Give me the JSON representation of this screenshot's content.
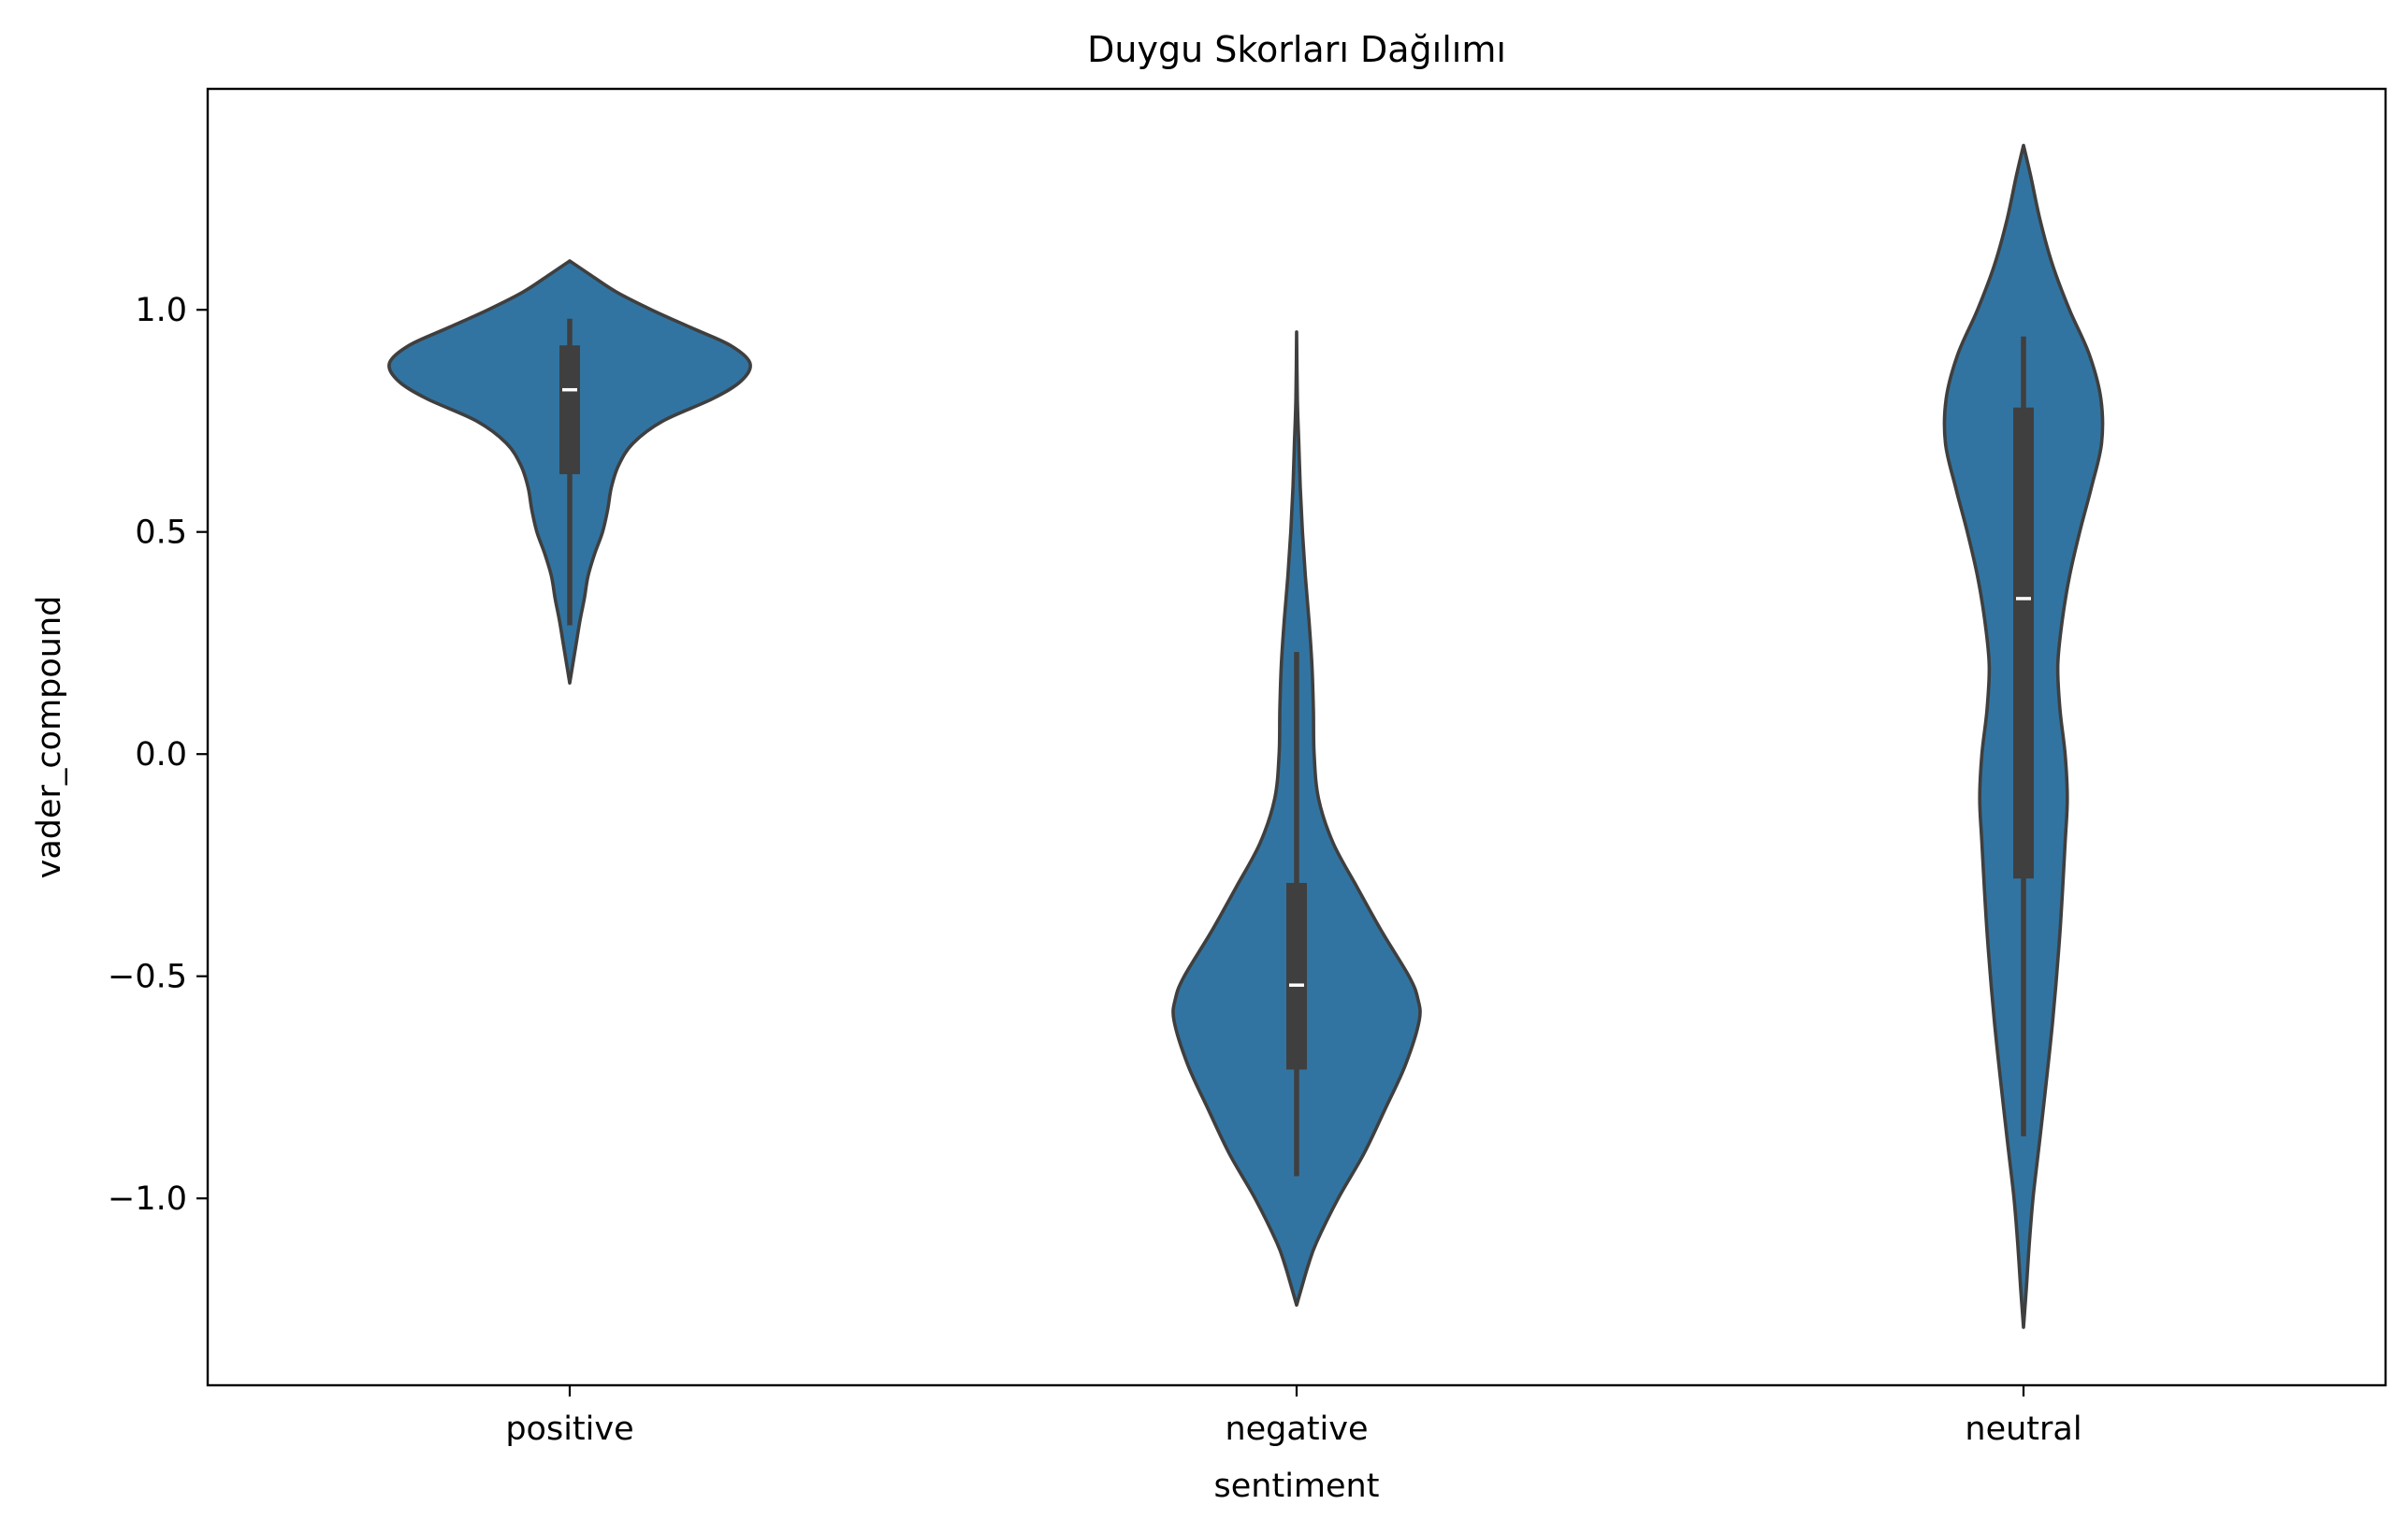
{
  "chart_data": {
    "type": "violin",
    "title": "Duygu Skorları Dağılımı",
    "xlabel": "sentiment",
    "ylabel": "vader_compound",
    "categories": [
      "positive",
      "negative",
      "neutral"
    ],
    "ylim": [
      -1.42,
      1.5
    ],
    "yticks": [
      1.0,
      0.5,
      0.0,
      -0.5,
      -1.0
    ],
    "ytick_labels": [
      "1.0",
      "0.5",
      "0.0",
      "−0.5",
      "−1.0"
    ],
    "grid": false,
    "colors": {
      "violin_fill": "#3274a1",
      "violin_edge": "#3f3f3f",
      "box": "#3f3f3f",
      "median": "#ffffff"
    },
    "violins": [
      {
        "category": "positive",
        "density_profile": [
          [
            0.16,
            0.0
          ],
          [
            0.2,
            0.04
          ],
          [
            0.25,
            0.09
          ],
          [
            0.3,
            0.14
          ],
          [
            0.35,
            0.2
          ],
          [
            0.4,
            0.25
          ],
          [
            0.45,
            0.34
          ],
          [
            0.5,
            0.45
          ],
          [
            0.55,
            0.52
          ],
          [
            0.6,
            0.57
          ],
          [
            0.65,
            0.67
          ],
          [
            0.7,
            0.87
          ],
          [
            0.75,
            1.28
          ],
          [
            0.8,
            1.96
          ],
          [
            0.84,
            2.35
          ],
          [
            0.88,
            2.47
          ],
          [
            0.92,
            2.2
          ],
          [
            0.96,
            1.66
          ],
          [
            1.0,
            1.12
          ],
          [
            1.04,
            0.64
          ],
          [
            1.08,
            0.27
          ],
          [
            1.11,
            0.0
          ]
        ],
        "whisker": [
          0.29,
          0.98
        ],
        "q1": 0.63,
        "median": 0.82,
        "q3": 0.92
      },
      {
        "category": "negative",
        "density_profile": [
          [
            -1.24,
            0.0
          ],
          [
            -1.2,
            0.07
          ],
          [
            -1.15,
            0.16
          ],
          [
            -1.1,
            0.27
          ],
          [
            -1.0,
            0.57
          ],
          [
            -0.9,
            0.92
          ],
          [
            -0.8,
            1.21
          ],
          [
            -0.7,
            1.49
          ],
          [
            -0.6,
            1.68
          ],
          [
            -0.55,
            1.66
          ],
          [
            -0.5,
            1.54
          ],
          [
            -0.4,
            1.17
          ],
          [
            -0.3,
            0.83
          ],
          [
            -0.2,
            0.5
          ],
          [
            -0.1,
            0.3
          ],
          [
            0.0,
            0.24
          ],
          [
            0.1,
            0.23
          ],
          [
            0.2,
            0.21
          ],
          [
            0.3,
            0.17
          ],
          [
            0.4,
            0.12
          ],
          [
            0.5,
            0.08
          ],
          [
            0.6,
            0.05
          ],
          [
            0.7,
            0.03
          ],
          [
            0.8,
            0.01
          ],
          [
            0.95,
            0.0
          ]
        ],
        "whisker": [
          -0.95,
          0.23
        ],
        "q1": -0.71,
        "median": -0.52,
        "q3": -0.29
      },
      {
        "category": "neutral",
        "density_profile": [
          [
            -1.29,
            0.0
          ],
          [
            -1.2,
            0.04
          ],
          [
            -1.1,
            0.08
          ],
          [
            -1.0,
            0.13
          ],
          [
            -0.9,
            0.2
          ],
          [
            -0.8,
            0.27
          ],
          [
            -0.6,
            0.4
          ],
          [
            -0.4,
            0.5
          ],
          [
            -0.2,
            0.57
          ],
          [
            -0.1,
            0.6
          ],
          [
            0.0,
            0.57
          ],
          [
            0.1,
            0.5
          ],
          [
            0.2,
            0.47
          ],
          [
            0.3,
            0.53
          ],
          [
            0.4,
            0.63
          ],
          [
            0.5,
            0.77
          ],
          [
            0.6,
            0.93
          ],
          [
            0.7,
            1.07
          ],
          [
            0.8,
            1.06
          ],
          [
            0.9,
            0.9
          ],
          [
            1.0,
            0.63
          ],
          [
            1.1,
            0.4
          ],
          [
            1.2,
            0.23
          ],
          [
            1.3,
            0.1
          ],
          [
            1.37,
            0.0
          ]
        ],
        "whisker": [
          -0.86,
          0.94
        ],
        "q1": -0.28,
        "median": 0.35,
        "q3": 0.78
      }
    ]
  }
}
